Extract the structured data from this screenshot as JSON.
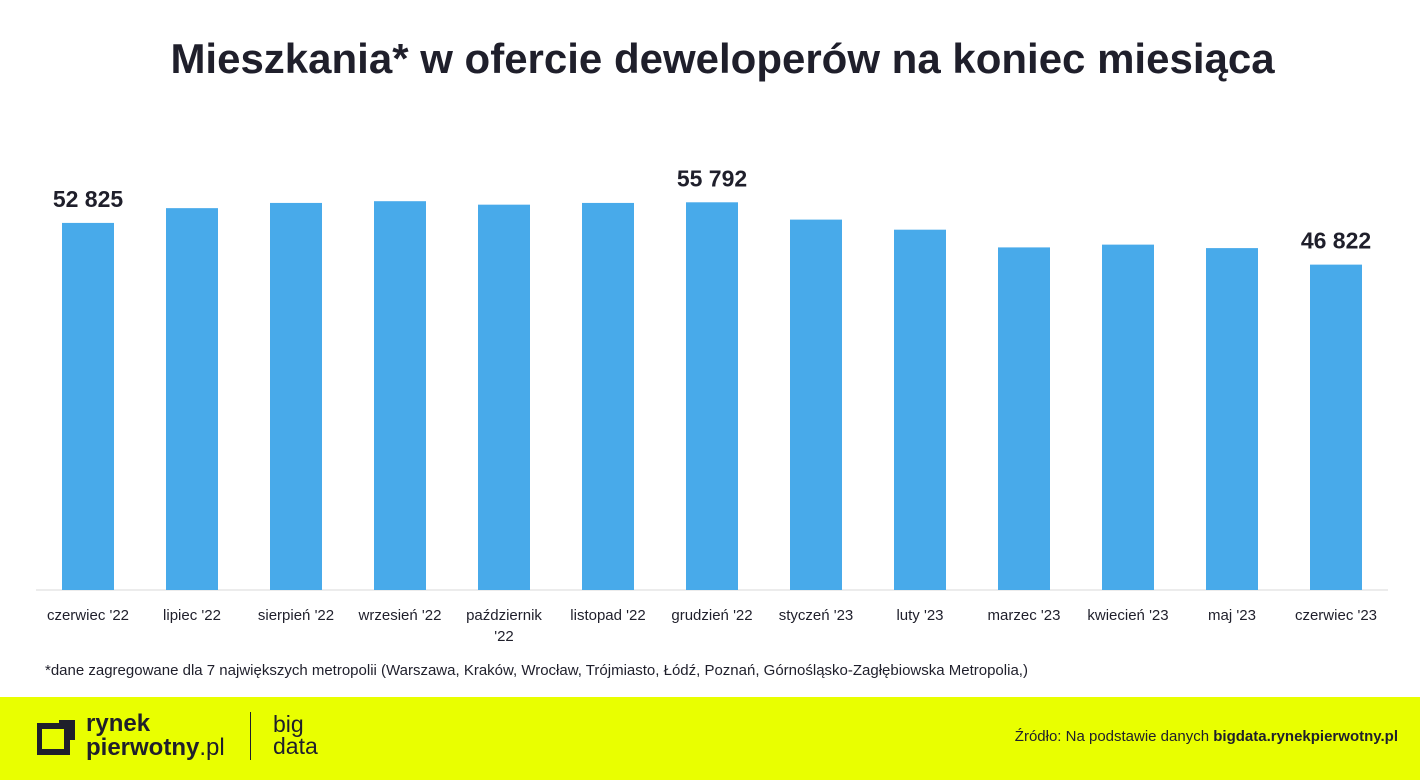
{
  "chart_data": {
    "type": "bar",
    "title": "Mieszkania* w ofercie deweloperów na koniec miesiąca",
    "categories": [
      "czerwiec '22",
      "lipiec '22",
      "sierpień '22",
      "wrzesień '22",
      "październik '22",
      "listopad '22",
      "grudzień '22",
      "styczeń '23",
      "luty '23",
      "marzec '23",
      "kwiecień '23",
      "maj '23",
      "czerwiec '23"
    ],
    "values": [
      52825,
      54950,
      55700,
      55950,
      55450,
      55700,
      55792,
      53300,
      51850,
      49300,
      49700,
      49200,
      46822
    ],
    "data_labels": {
      "0": "52 825",
      "6": "55 792",
      "12": "46 822"
    },
    "ylim": [
      0,
      59000
    ],
    "bar_color": "#48aaea",
    "grid": false,
    "legend": "none"
  },
  "footnote": "*dane zagregowane dla 7 największych metropolii (Warszawa, Kraków, Wrocław, Trójmiasto, Łódź, Poznań, Górnośląsko-Zagłębiowska Metropolia,)",
  "footer": {
    "brand_line1": "rynek",
    "brand_line2": "pierwotny",
    "brand_tld": ".pl",
    "bigdata_line1": "big",
    "bigdata_line2": "data",
    "source_prefix": "Źródło: Na podstawie danych ",
    "source_site": "bigdata.rynekpierwotny.pl",
    "background_color": "#e9ff00"
  }
}
